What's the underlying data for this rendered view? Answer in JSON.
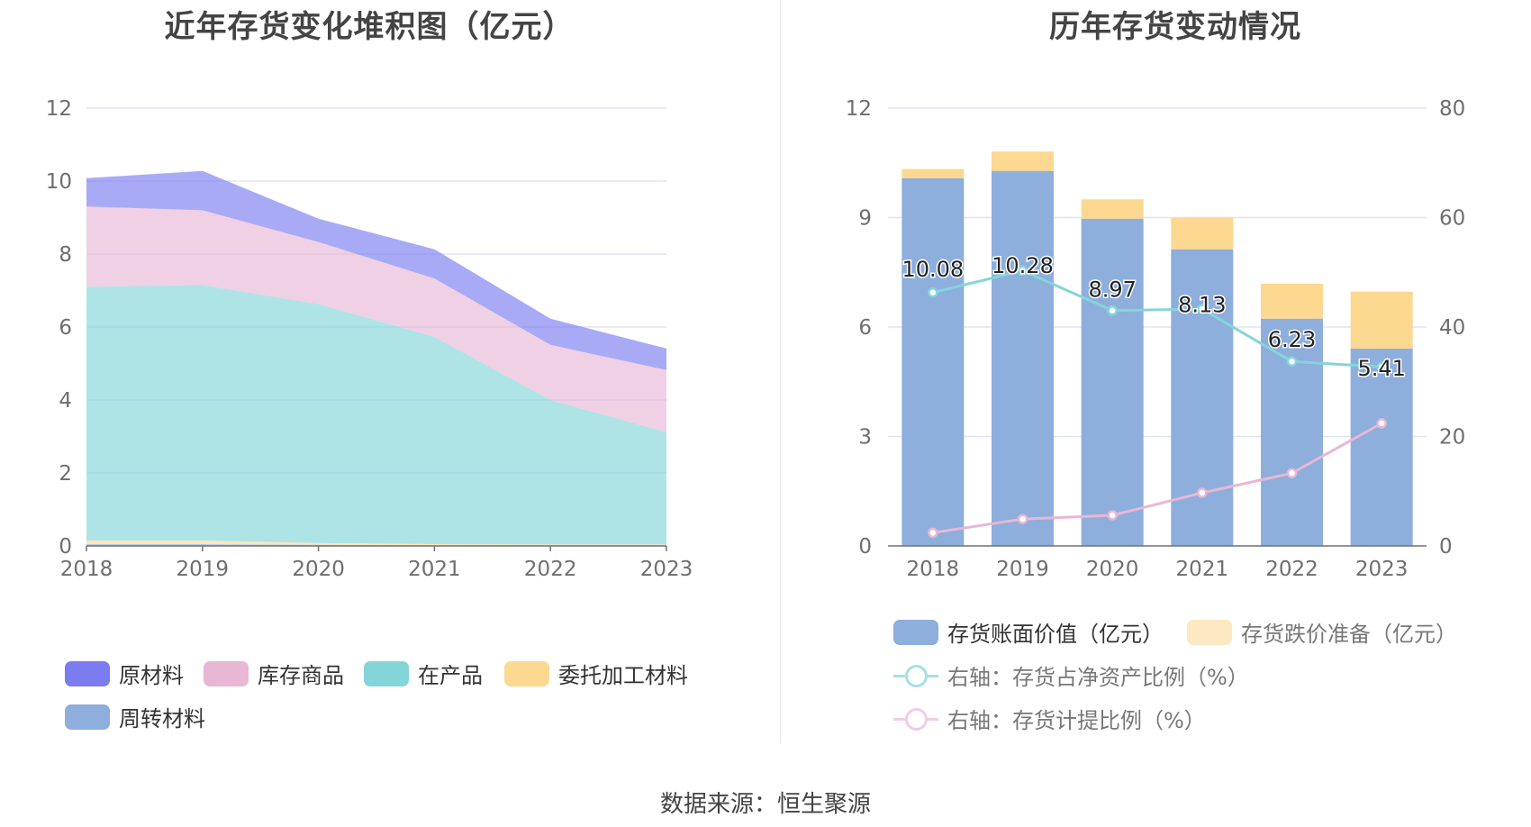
{
  "chart_data": [
    {
      "type": "area",
      "title": "近年存货变化堆积图（亿元）",
      "x": [
        "2018",
        "2019",
        "2020",
        "2021",
        "2022",
        "2023"
      ],
      "ylim": [
        0,
        12
      ],
      "yticks": [
        0,
        2,
        4,
        6,
        8,
        10,
        12
      ],
      "stacked": true,
      "grid": true,
      "legend_position": "bottom",
      "series": [
        {
          "name": "周转材料",
          "color": "#8eaedc",
          "values": [
            0.05,
            0.05,
            0.03,
            0.02,
            0.02,
            0.02
          ]
        },
        {
          "name": "委托加工材料",
          "color": "#fdd891",
          "values": [
            0.1,
            0.1,
            0.05,
            0.03,
            0.02,
            0.02
          ]
        },
        {
          "name": "在产品",
          "color": "#84d5d8",
          "values": [
            6.95,
            7.0,
            6.55,
            5.68,
            3.96,
            3.08
          ]
        },
        {
          "name": "库存商品",
          "color": "#e8b7d5",
          "values": [
            2.2,
            2.05,
            1.7,
            1.6,
            1.51,
            1.7
          ]
        },
        {
          "name": "原材料",
          "color": "#7b7cf0",
          "values": [
            0.78,
            1.08,
            0.64,
            0.8,
            0.72,
            0.59
          ]
        }
      ]
    },
    {
      "type": "bar",
      "title": "历年存货变动情况",
      "categories": [
        "2018",
        "2019",
        "2020",
        "2021",
        "2022",
        "2023"
      ],
      "ylim": [
        0,
        12
      ],
      "yticks": [
        0,
        3,
        6,
        9,
        12
      ],
      "y2lim": [
        0,
        80
      ],
      "y2ticks": [
        0,
        20,
        40,
        60,
        80
      ],
      "grid": true,
      "legend_position": "bottom",
      "series": [
        {
          "name": "存货账面价值（亿元）",
          "type": "bar",
          "stack": "total",
          "color": "#8eaedc",
          "values": [
            10.08,
            10.28,
            8.97,
            8.13,
            6.23,
            5.41
          ],
          "labels": [
            "10.08",
            "10.28",
            "8.97",
            "8.13",
            "6.23",
            "5.41"
          ]
        },
        {
          "name": "存货跌价准备（亿元）",
          "type": "bar",
          "stack": "total",
          "color": "#fdd891",
          "values": [
            0.25,
            0.53,
            0.53,
            0.87,
            0.96,
            1.56
          ]
        },
        {
          "name": "右轴：存货占净资产比例（%）",
          "type": "line",
          "axis": "right",
          "color": "#84d5d8",
          "values": [
            46.3,
            50.3,
            43.0,
            43.3,
            33.7,
            32.7
          ]
        },
        {
          "name": "右轴：存货计提比例（%）",
          "type": "line",
          "axis": "right",
          "color": "#e8b7d5",
          "values": [
            2.4,
            4.9,
            5.6,
            9.7,
            13.3,
            22.4
          ]
        }
      ]
    }
  ],
  "footer": {
    "source": "数据来源：恒生聚源"
  }
}
